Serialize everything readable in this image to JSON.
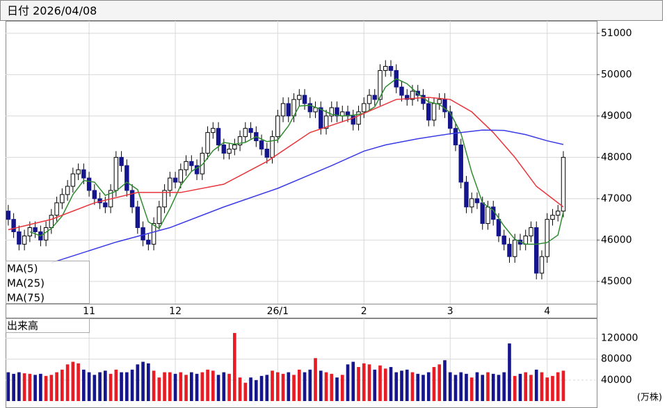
{
  "header": {
    "label": "日付",
    "date": "2026/04/08"
  },
  "chart_data": [
    {
      "type": "candlestick",
      "open": [
        46700,
        46500,
        46200,
        45900,
        46100,
        46300,
        46200,
        46000,
        46300,
        46600,
        46900,
        47100,
        47300,
        47600,
        47700,
        47500,
        47200,
        47000,
        46900,
        46800,
        47200,
        48000,
        47800,
        47200,
        46800,
        46300,
        46000,
        45900,
        46400,
        46800,
        47200,
        47500,
        47400,
        47700,
        47900,
        47800,
        47600,
        48100,
        48600,
        48700,
        48300,
        48100,
        48200,
        48300,
        48500,
        48700,
        48600,
        48400,
        48200,
        48000,
        48500,
        49000,
        49300,
        49000,
        49400,
        49500,
        49300,
        49100,
        49200,
        48700,
        49000,
        49200,
        49000,
        49100,
        49000,
        48800,
        49100,
        49300,
        49500,
        49400,
        50100,
        50200,
        50100,
        49700,
        49500,
        49400,
        49600,
        49500,
        49300,
        48900,
        49300,
        49400,
        49100,
        48700,
        48300,
        47400,
        46800,
        47000,
        46900,
        46400,
        46800,
        46500,
        46100,
        45900,
        45600,
        46000,
        45900,
        46100,
        46300,
        45200,
        45600,
        46500,
        46600,
        46700
      ],
      "high": [
        46850,
        46650,
        46350,
        46250,
        46450,
        46450,
        46350,
        46450,
        46750,
        47050,
        47250,
        47450,
        47750,
        47850,
        47850,
        47650,
        47350,
        47150,
        47050,
        47350,
        48150,
        48150,
        47950,
        47350,
        46950,
        46450,
        46150,
        46550,
        46950,
        47350,
        47650,
        47650,
        47850,
        48050,
        48050,
        47950,
        48250,
        48750,
        48850,
        48850,
        48450,
        48350,
        48450,
        48650,
        48850,
        48850,
        48750,
        48550,
        48350,
        48650,
        49150,
        49450,
        49450,
        49550,
        49650,
        49650,
        49450,
        49350,
        49350,
        49150,
        49350,
        49350,
        49250,
        49250,
        49150,
        49250,
        49450,
        49650,
        49650,
        50250,
        50350,
        50350,
        50250,
        49850,
        49650,
        49750,
        49750,
        49650,
        49450,
        49450,
        49550,
        49550,
        49250,
        48850,
        48450,
        47550,
        47150,
        47150,
        47050,
        46950,
        46950,
        46650,
        46250,
        46050,
        46150,
        46150,
        46250,
        46450,
        46450,
        45750,
        46650,
        46750,
        46850,
        48150
      ],
      "low": [
        46350,
        46050,
        45750,
        45750,
        45950,
        46050,
        45850,
        45850,
        46150,
        46450,
        46750,
        46950,
        47150,
        47450,
        47350,
        47050,
        46850,
        46750,
        46650,
        46650,
        47050,
        47650,
        47050,
        46650,
        46150,
        45850,
        45750,
        45750,
        46250,
        46650,
        47050,
        47250,
        47250,
        47550,
        47650,
        47450,
        47450,
        47950,
        48450,
        48150,
        47950,
        47950,
        48050,
        48150,
        48350,
        48450,
        48250,
        48050,
        47850,
        47850,
        48350,
        48850,
        48850,
        48850,
        49250,
        49150,
        48950,
        48950,
        48550,
        48550,
        48850,
        48850,
        48850,
        48850,
        48650,
        48650,
        48950,
        49150,
        49250,
        49250,
        49950,
        49950,
        49550,
        49350,
        49250,
        49250,
        49350,
        49150,
        48750,
        48750,
        49150,
        48950,
        48550,
        48150,
        47250,
        46650,
        46650,
        46750,
        46250,
        46250,
        46350,
        45950,
        45750,
        45450,
        45450,
        45750,
        45750,
        45950,
        45050,
        45050,
        45450,
        46350,
        46450,
        46550
      ],
      "close": [
        46500,
        46200,
        45900,
        46100,
        46300,
        46200,
        46000,
        46300,
        46600,
        46900,
        47100,
        47300,
        47600,
        47700,
        47500,
        47200,
        47000,
        46900,
        46800,
        47200,
        48000,
        47800,
        47200,
        46800,
        46300,
        46000,
        45900,
        46400,
        46800,
        47200,
        47500,
        47400,
        47700,
        47900,
        47800,
        47600,
        48100,
        48600,
        48700,
        48300,
        48100,
        48200,
        48300,
        48500,
        48700,
        48600,
        48400,
        48200,
        48000,
        48500,
        49000,
        49300,
        49000,
        49400,
        49500,
        49300,
        49100,
        49200,
        48700,
        49000,
        49200,
        49000,
        49100,
        49000,
        48800,
        49100,
        49300,
        49500,
        49400,
        50100,
        50200,
        50100,
        49700,
        49500,
        49400,
        49600,
        49500,
        49300,
        48900,
        49300,
        49400,
        49100,
        48700,
        48300,
        47400,
        46800,
        47000,
        46900,
        46400,
        46800,
        46500,
        46100,
        45900,
        45600,
        46000,
        45900,
        46100,
        46300,
        45200,
        45600,
        46500,
        46600,
        46700,
        48000
      ],
      "up_color": "#ffffff",
      "down_color": "#15158c",
      "xlim": [
        -0.5,
        109.2
      ],
      "xticks": [
        {
          "value": 15,
          "label": "11"
        },
        {
          "value": 31,
          "label": "12"
        },
        {
          "value": 50,
          "label": "26/1"
        },
        {
          "value": 66,
          "label": "2"
        },
        {
          "value": 82,
          "label": "3"
        },
        {
          "value": 100,
          "label": "4"
        }
      ],
      "ylim": [
        44460,
        51300
      ],
      "yticks": [
        45000,
        46000,
        47000,
        48000,
        49000,
        50000,
        51000
      ],
      "grid": true,
      "series": [
        {
          "name": "MA(5)",
          "color": "#2e8b2e",
          "x": [
            4,
            6,
            8,
            10,
            12,
            14,
            16,
            18,
            20,
            22,
            24,
            26,
            28,
            30,
            32,
            34,
            36,
            38,
            40,
            42,
            44,
            46,
            48,
            50,
            52,
            54,
            56,
            58,
            60,
            62,
            64,
            66,
            68,
            70,
            72,
            74,
            76,
            78,
            80,
            82,
            84,
            86,
            88,
            90,
            92,
            94,
            96,
            98,
            100,
            102,
            103
          ],
          "values": [
            46200,
            46100,
            46280,
            46580,
            47100,
            47440,
            47400,
            47080,
            47180,
            47400,
            47220,
            46440,
            46280,
            46760,
            47320,
            47660,
            47820,
            48160,
            48360,
            48320,
            48360,
            48500,
            48380,
            48420,
            48760,
            49240,
            49260,
            49160,
            49040,
            49000,
            49020,
            49060,
            49220,
            49700,
            49900,
            49780,
            49540,
            49340,
            49280,
            49080,
            48580,
            47640,
            46900,
            46720,
            46340,
            46020,
            45900,
            45900,
            45940,
            46120,
            46680
          ]
        },
        {
          "name": "MA(25)",
          "color": "#e8343a",
          "x": [
            0,
            8,
            16,
            24,
            32,
            40,
            48,
            56,
            64,
            72,
            78,
            82,
            86,
            90,
            94,
            98,
            103
          ],
          "values": [
            46250,
            46500,
            46900,
            47150,
            47150,
            47350,
            47900,
            48600,
            48950,
            49400,
            49450,
            49400,
            49100,
            48600,
            48000,
            47300,
            46800
          ]
        },
        {
          "name": "MA(75)",
          "color": "#3a3ae6",
          "x": [
            8,
            20,
            30,
            40,
            50,
            60,
            66,
            70,
            76,
            82,
            88,
            92,
            96,
            100,
            103
          ],
          "values": [
            45450,
            45950,
            46300,
            46800,
            47250,
            47800,
            48150,
            48300,
            48450,
            48570,
            48660,
            48650,
            48550,
            48400,
            48310
          ]
        }
      ]
    },
    {
      "type": "bar",
      "title": "出来高",
      "unit": "(万株)",
      "values": [
        55000,
        52000,
        55000,
        53000,
        52000,
        50000,
        52000,
        48000,
        50000,
        55000,
        60000,
        70000,
        75000,
        72000,
        60000,
        55000,
        50000,
        55000,
        58000,
        52000,
        60000,
        55000,
        55000,
        60000,
        70000,
        75000,
        72000,
        58000,
        45000,
        55000,
        55000,
        52000,
        55000,
        50000,
        55000,
        52000,
        55000,
        60000,
        58000,
        50000,
        55000,
        52000,
        130000,
        45000,
        35000,
        45000,
        40000,
        48000,
        50000,
        58000,
        55000,
        52000,
        55000,
        50000,
        60000,
        55000,
        60000,
        82000,
        58000,
        55000,
        52000,
        45000,
        50000,
        70000,
        75000,
        65000,
        72000,
        70000,
        60000,
        68000,
        62000,
        65000,
        55000,
        58000,
        60000,
        55000,
        52000,
        50000,
        55000,
        65000,
        70000,
        78000,
        55000,
        50000,
        55000,
        52000,
        45000,
        55000,
        50000,
        55000,
        52000,
        50000,
        55000,
        110000,
        48000,
        52000,
        55000,
        50000,
        60000,
        55000,
        45000,
        48000,
        55000,
        58000
      ],
      "up_color": "#e81c24",
      "down_color": "#15158c",
      "ylim": [
        0,
        158000
      ],
      "yticks": [
        40000,
        80000,
        120000
      ],
      "grid": true
    }
  ]
}
